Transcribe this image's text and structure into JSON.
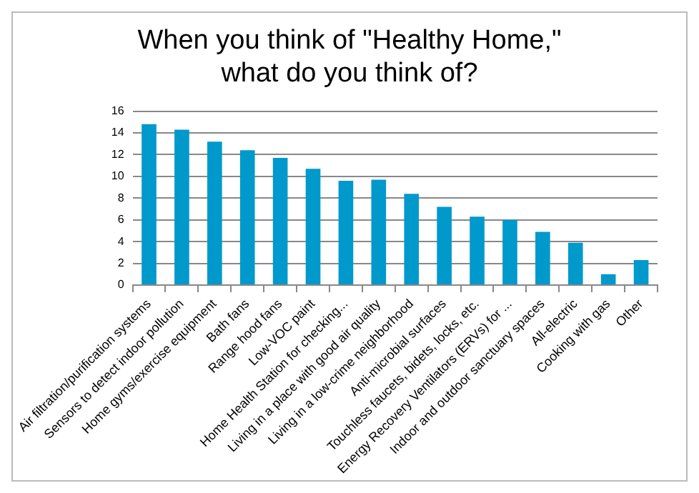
{
  "chart_data": {
    "type": "bar",
    "title": "When you think of \"Healthy Home,\" what do you think of?",
    "categories": [
      "Air filtration/purification systems",
      "Sensors to detect indoor pollution",
      "Home gyms/exercise equipment",
      "Bath fans",
      "Range hood fans",
      "Low-VOC paint",
      "Home Health Station for checking...",
      "Living in a place with good air quality",
      "Living in a low-crime neighborhood",
      "Anti-microbial surfaces",
      "Touchless faucets, bidets, locks, etc.",
      "Energy Recovery Ventilators (ERVs) for ...",
      "Indoor and outdoor sanctuary spaces",
      "All-electric",
      "Cooking with gas",
      "Other"
    ],
    "values": [
      14.8,
      14.3,
      13.2,
      12.4,
      11.7,
      10.7,
      9.6,
      9.7,
      8.4,
      7.2,
      6.3,
      6.0,
      4.9,
      3.9,
      1.0,
      2.3
    ],
    "color": "#0099cc",
    "ylim": [
      0,
      16
    ],
    "yticks": [
      0,
      2,
      4,
      6,
      8,
      10,
      12,
      14,
      16
    ],
    "grid": "y"
  }
}
